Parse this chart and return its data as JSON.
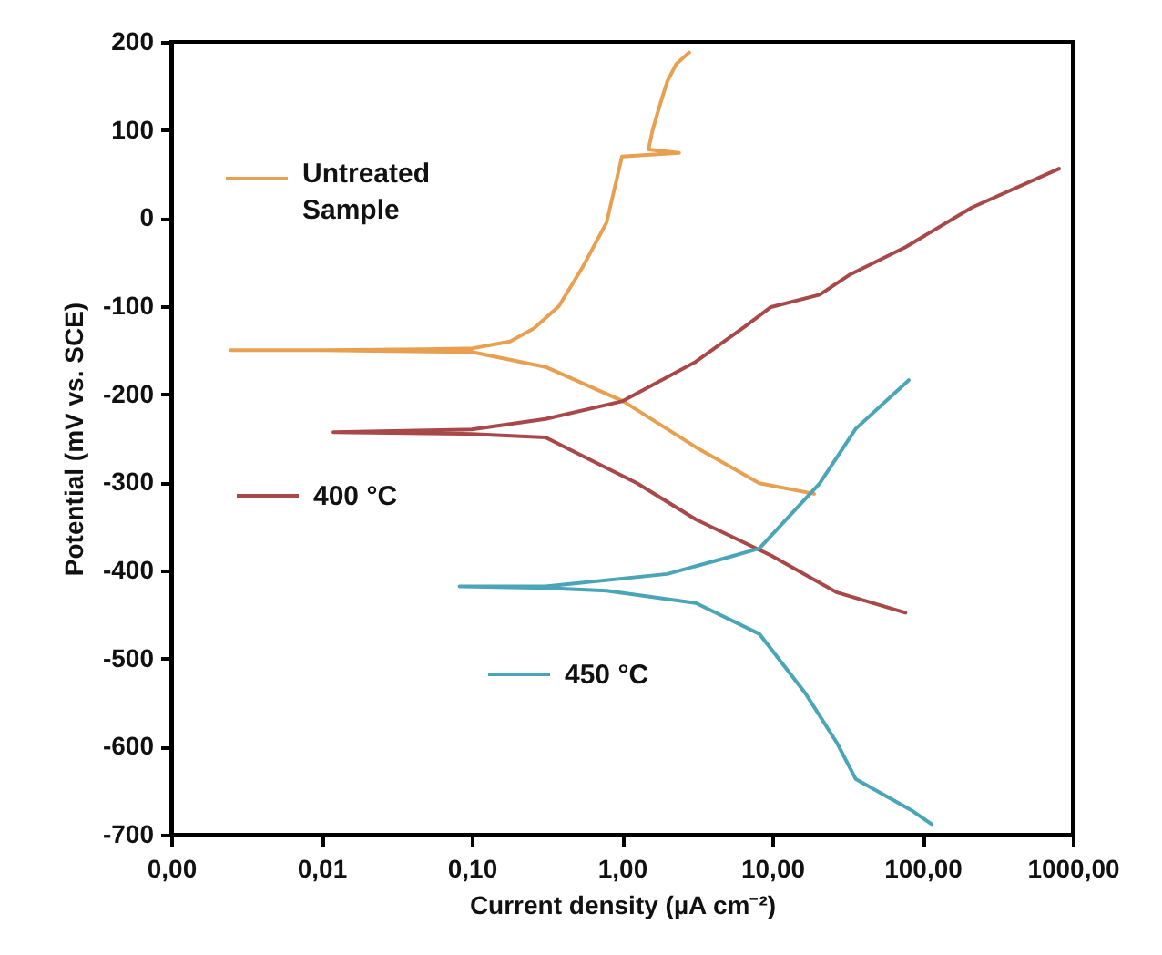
{
  "chart_data": {
    "type": "line",
    "xlabel": "Current density (µA cm⁻²)",
    "ylabel": "Potential (mV vs. SCE)",
    "log": "x",
    "xlim": [
      0.001,
      1000
    ],
    "xticks": [
      {
        "value": 0.001,
        "label": "0,00"
      },
      {
        "value": 0.01,
        "label": "0,01"
      },
      {
        "value": 0.1,
        "label": "0,10"
      },
      {
        "value": 1,
        "label": "1,00"
      },
      {
        "value": 10,
        "label": "10,00"
      },
      {
        "value": 100,
        "label": "100,00"
      },
      {
        "value": 1000,
        "label": "1000,00"
      }
    ],
    "ylim": [
      -700,
      200
    ],
    "yticks": [
      -700,
      -600,
      -500,
      -400,
      -300,
      -200,
      -100,
      0,
      100,
      200
    ],
    "grid": false,
    "legend": "left",
    "series": [
      {
        "name": "Untreated Sample",
        "color": "#e8a050",
        "x": [
          19,
          8.2,
          3.1,
          1.02,
          0.31,
          0.1,
          0.01,
          0.0025,
          0.01,
          0.05,
          0.1,
          0.18,
          0.26,
          0.38,
          0.55,
          0.79,
          1.0,
          2.4,
          1.5,
          1.6,
          1.8,
          2.0,
          2.3,
          2.8
        ],
        "values": [
          -313,
          -301,
          -260,
          -208,
          -169,
          -152,
          -150,
          -150,
          -150,
          -149,
          -148,
          -140,
          -125,
          -100,
          -55,
          -5,
          70,
          74,
          78,
          100,
          130,
          155,
          175,
          188
        ]
      },
      {
        "name": "400 °C",
        "color": "#a94848",
        "x": [
          77,
          27,
          9.8,
          3.1,
          1.26,
          0.31,
          0.1,
          0.012,
          0.1,
          0.31,
          1.0,
          3.1,
          6.7,
          9.8,
          20.7,
          33,
          77,
          213,
          811
        ],
        "values": [
          -448,
          -425,
          -383,
          -342,
          -301,
          -249,
          -245,
          -243,
          -240,
          -228,
          -208,
          -163,
          -122,
          -101,
          -87,
          -64,
          -33,
          12,
          56
        ]
      },
      {
        "name": "450 °C",
        "color": "#4aa5b8",
        "x": [
          115,
          84,
          36,
          27,
          16.7,
          8.2,
          3.1,
          0.79,
          0.31,
          0.083,
          0.31,
          2.0,
          5.1,
          8.2,
          20.7,
          36,
          81
        ],
        "values": [
          -688,
          -672,
          -637,
          -596,
          -540,
          -472,
          -437,
          -423,
          -420,
          -418,
          -418,
          -404,
          -385,
          -375,
          -301,
          -239,
          -184
        ]
      }
    ]
  }
}
